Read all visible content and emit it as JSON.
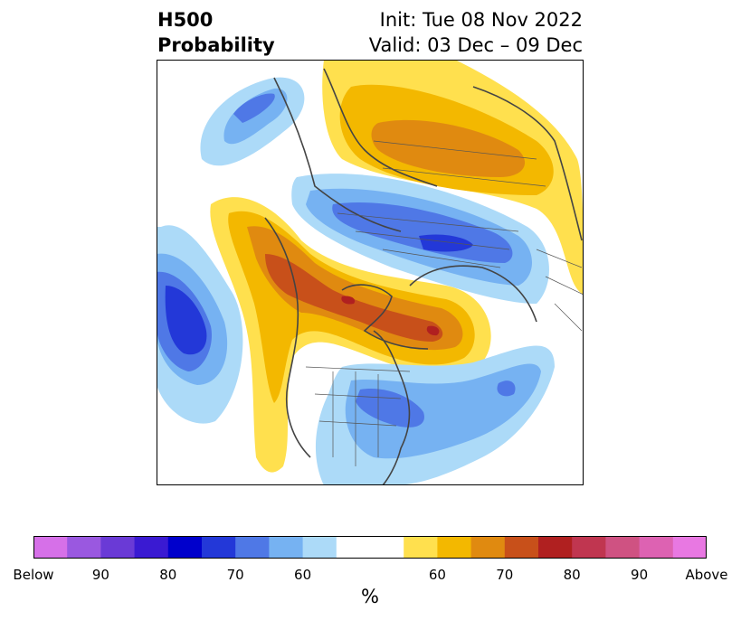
{
  "title": {
    "variable": "H500",
    "product": "Probability",
    "init": "Init: Tue 08 Nov 2022",
    "valid": "Valid: 03 Dec – 09 Dec"
  },
  "colorbar": {
    "unit": "%",
    "colors": [
      "#d670e8",
      "#9a58e0",
      "#6a3ad6",
      "#3a1ad2",
      "#0000cc",
      "#2338d8",
      "#4f78e6",
      "#76b2f2",
      "#acdaf8",
      "#ffffff",
      "#ffe04e",
      "#f3b800",
      "#e08a10",
      "#c8501a",
      "#b02020",
      "#c03650",
      "#cf5282",
      "#dd62b2",
      "#e878e2"
    ],
    "labels": [
      "Below",
      "90",
      "80",
      "70",
      "60",
      "60",
      "70",
      "80",
      "90",
      "Above"
    ]
  },
  "legend_colors": {
    "below_60": "#acdaf8",
    "below_70": "#76b2f2",
    "below_80": "#4f78e6",
    "below_90": "#2338d8",
    "above_60": "#ffe04e",
    "above_70": "#f3b800",
    "above_80": "#e08a10",
    "above_90": "#c8501a",
    "above_95": "#b02020"
  }
}
